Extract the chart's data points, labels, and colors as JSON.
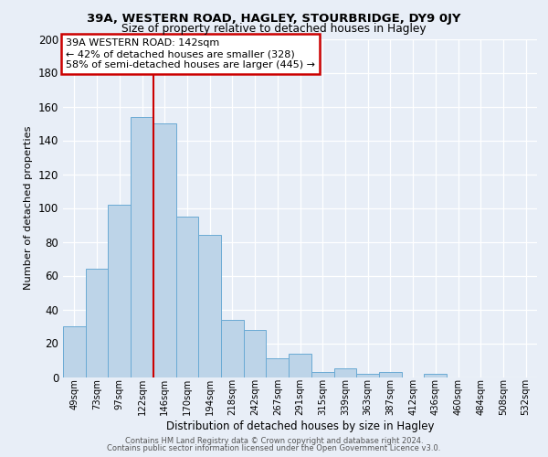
{
  "title1": "39A, WESTERN ROAD, HAGLEY, STOURBRIDGE, DY9 0JY",
  "title2": "Size of property relative to detached houses in Hagley",
  "xlabel": "Distribution of detached houses by size in Hagley",
  "ylabel": "Number of detached properties",
  "bar_labels": [
    "49sqm",
    "73sqm",
    "97sqm",
    "122sqm",
    "146sqm",
    "170sqm",
    "194sqm",
    "218sqm",
    "242sqm",
    "267sqm",
    "291sqm",
    "315sqm",
    "339sqm",
    "363sqm",
    "387sqm",
    "412sqm",
    "436sqm",
    "460sqm",
    "484sqm",
    "508sqm",
    "532sqm"
  ],
  "bar_heights": [
    30,
    64,
    102,
    154,
    150,
    95,
    84,
    34,
    28,
    11,
    14,
    3,
    5,
    2,
    3,
    0,
    2,
    0,
    0,
    0,
    0
  ],
  "bar_color": "#bdd4e8",
  "bar_edge_color": "#6aaad4",
  "bar_edge_width": 0.7,
  "vline_color": "#cc0000",
  "vline_index": 4,
  "annotation_title": "39A WESTERN ROAD: 142sqm",
  "annotation_line1": "← 42% of detached houses are smaller (328)",
  "annotation_line2": "58% of semi-detached houses are larger (445) →",
  "annotation_box_facecolor": "#ffffff",
  "annotation_box_edgecolor": "#cc0000",
  "ylim": [
    0,
    200
  ],
  "yticks": [
    0,
    20,
    40,
    60,
    80,
    100,
    120,
    140,
    160,
    180,
    200
  ],
  "background_color": "#e8eef7",
  "grid_color": "#ffffff",
  "footer1": "Contains HM Land Registry data © Crown copyright and database right 2024.",
  "footer2": "Contains public sector information licensed under the Open Government Licence v3.0."
}
